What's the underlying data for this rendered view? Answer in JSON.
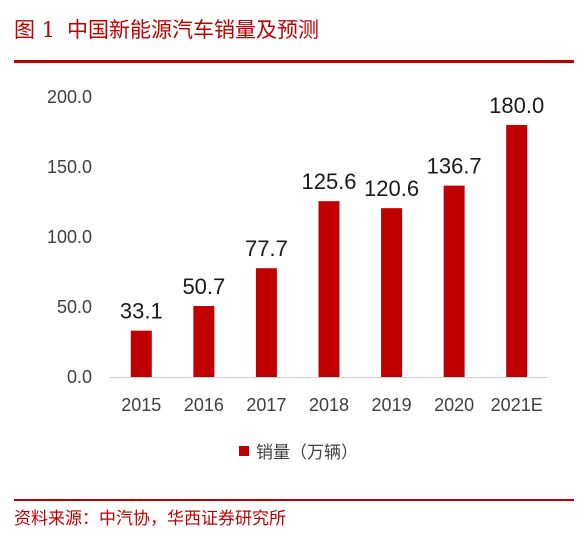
{
  "figure": {
    "label": "图 1",
    "title": "中国新能源汽车销量及预测",
    "source": "资料来源：中汽协，华西证券研究所"
  },
  "colors": {
    "accent": "#c00000",
    "bar": "#c00000",
    "text": "#404040"
  },
  "chart_data": {
    "type": "bar",
    "categories": [
      "2015",
      "2016",
      "2017",
      "2018",
      "2019",
      "2020",
      "2021E"
    ],
    "series": [
      {
        "name": "销量（万辆）",
        "values": [
          33.1,
          50.7,
          77.7,
          125.6,
          120.6,
          136.7,
          180.0
        ],
        "labels": [
          "33.1",
          "50.7",
          "77.7",
          "125.6",
          "120.6",
          "136.7",
          "180.0"
        ]
      }
    ],
    "y_ticks": [
      "0.0",
      "50.0",
      "100.0",
      "150.0",
      "200.0"
    ],
    "ylim": [
      0,
      200
    ],
    "grid": false,
    "legend_position": "bottom"
  }
}
